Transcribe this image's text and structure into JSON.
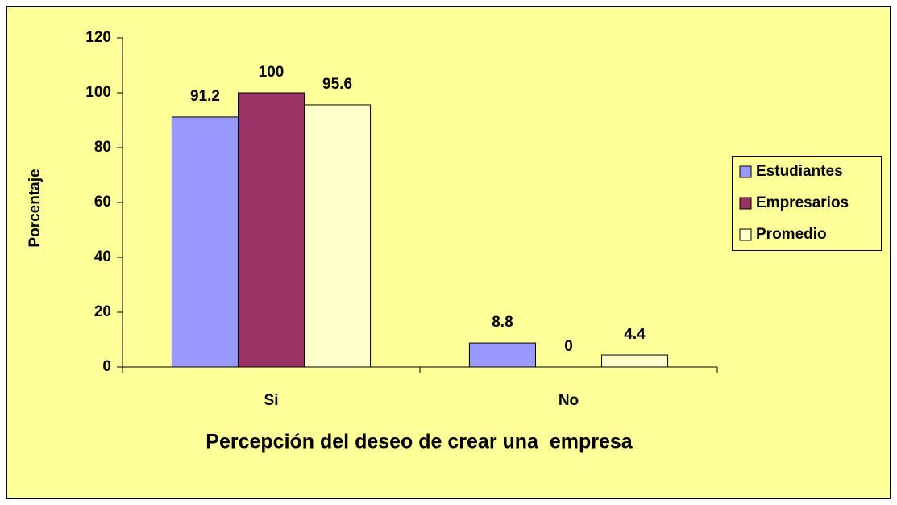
{
  "chart_data": {
    "type": "bar",
    "xlabel": "Percepción del deseo de crear una  empresa",
    "ylabel": "Porcentaje",
    "categories": [
      "Si",
      "No"
    ],
    "series": [
      {
        "name": "Estudiantes",
        "color": "#9999ff",
        "values": [
          91.2,
          8.8
        ]
      },
      {
        "name": "Empresarios",
        "color": "#993366",
        "values": [
          100,
          0
        ]
      },
      {
        "name": "Promedio",
        "color": "#ffffcc",
        "values": [
          95.6,
          4.4
        ]
      }
    ],
    "ylim": [
      0,
      120
    ],
    "yticks": [
      0,
      20,
      40,
      60,
      80,
      100,
      120
    ],
    "background": "#ffff99",
    "legend": "right"
  }
}
